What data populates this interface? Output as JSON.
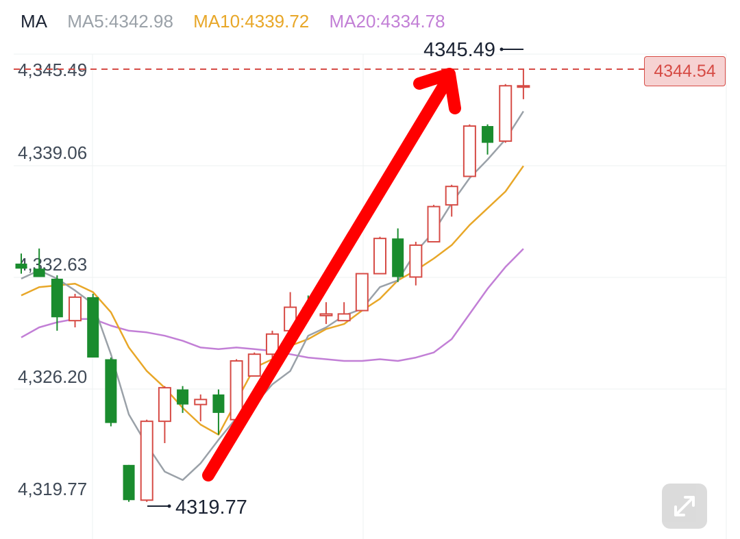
{
  "legend": {
    "title": "MA",
    "ma5": "MA5:4342.98",
    "ma10": "MA10:4339.72",
    "ma20": "MA20:4334.78"
  },
  "colors": {
    "up": "#d64b45",
    "down": "#1a8c2e",
    "ma5": "#9aa1a8",
    "ma10": "#e8a728",
    "ma20": "#c27fd6",
    "arrow": "#ff0000",
    "last_price": "#d64b45"
  },
  "last_price_label": "4344.54",
  "expand_icon": "expand-arrows-icon",
  "chart_data": {
    "type": "candlestick",
    "y_ticks": [
      "4,345.49",
      "4,339.06",
      "4,332.63",
      "4,326.20",
      "4,319.77"
    ],
    "y_tick_values": [
      4345.49,
      4339.06,
      4332.63,
      4326.2,
      4319.77
    ],
    "ylim": [
      4319.5,
      4346.4
    ],
    "high_annotation": "4345.49",
    "low_annotation": "4319.77",
    "last_price": 4344.54,
    "candles": [
      {
        "o": 4333.9,
        "h": 4334.5,
        "l": 4333.3,
        "c": 4333.6
      },
      {
        "o": 4333.6,
        "h": 4334.8,
        "l": 4333.1,
        "c": 4333.1
      },
      {
        "o": 4333.0,
        "h": 4333.2,
        "l": 4329.9,
        "c": 4330.7
      },
      {
        "o": 4330.5,
        "h": 4332.1,
        "l": 4330.1,
        "c": 4331.9
      },
      {
        "o": 4331.9,
        "h": 4332.1,
        "l": 4328.3,
        "c": 4328.3
      },
      {
        "o": 4328.2,
        "h": 4328.3,
        "l": 4324.2,
        "c": 4324.4
      },
      {
        "o": 4321.9,
        "h": 4321.9,
        "l": 4319.7,
        "c": 4319.8
      },
      {
        "o": 4319.8,
        "h": 4324.6,
        "l": 4319.7,
        "c": 4324.5
      },
      {
        "o": 4324.5,
        "h": 4326.6,
        "l": 4323.2,
        "c": 4326.5
      },
      {
        "o": 4326.4,
        "h": 4326.6,
        "l": 4325.0,
        "c": 4325.5
      },
      {
        "o": 4325.5,
        "h": 4326.1,
        "l": 4324.5,
        "c": 4325.8
      },
      {
        "o": 4326.1,
        "h": 4326.4,
        "l": 4323.7,
        "c": 4325.0
      },
      {
        "o": 4324.6,
        "h": 4328.2,
        "l": 4324.5,
        "c": 4328.1
      },
      {
        "o": 4327.2,
        "h": 4328.6,
        "l": 4327.2,
        "c": 4328.5
      },
      {
        "o": 4328.5,
        "h": 4329.9,
        "l": 4327.9,
        "c": 4329.7
      },
      {
        "o": 4329.9,
        "h": 4332.2,
        "l": 4329.9,
        "c": 4331.3
      },
      {
        "o": 4331.3,
        "h": 4332.0,
        "l": 4330.6,
        "c": 4331.0
      },
      {
        "o": 4330.8,
        "h": 4331.6,
        "l": 4330.3,
        "c": 4330.9
      },
      {
        "o": 4330.5,
        "h": 4331.6,
        "l": 4330.5,
        "c": 4330.9
      },
      {
        "o": 4331.1,
        "h": 4333.3,
        "l": 4331.1,
        "c": 4333.3
      },
      {
        "o": 4333.3,
        "h": 4335.5,
        "l": 4333.3,
        "c": 4335.4
      },
      {
        "o": 4335.4,
        "h": 4336.0,
        "l": 4332.8,
        "c": 4333.1
      },
      {
        "o": 4333.1,
        "h": 4335.2,
        "l": 4332.6,
        "c": 4335.0
      },
      {
        "o": 4335.2,
        "h": 4337.4,
        "l": 4335.2,
        "c": 4337.3
      },
      {
        "o": 4337.4,
        "h": 4338.6,
        "l": 4336.7,
        "c": 4338.5
      },
      {
        "o": 4339.1,
        "h": 4342.2,
        "l": 4339.1,
        "c": 4342.1
      },
      {
        "o": 4342.1,
        "h": 4342.2,
        "l": 4340.4,
        "c": 4341.1
      },
      {
        "o": 4341.2,
        "h": 4344.6,
        "l": 4341.1,
        "c": 4344.5
      },
      {
        "o": 4344.5,
        "h": 4345.5,
        "l": 4343.7,
        "c": 4344.5
      }
    ],
    "series": [
      {
        "name": "MA5",
        "values": [
          4333.0,
          4333.5,
          4333.0,
          4332.3,
          4331.5,
          4328.5,
          4324.9,
          4323.1,
          4321.5,
          4321.0,
          4322.0,
          4323.4,
          4324.7,
          4325.5,
          4326.7,
          4327.5,
          4329.6,
          4330.1,
          4330.8,
          4331.2,
          4332.5,
          4332.9,
          4334.6,
          4335.8,
          4337.5,
          4339.0,
          4340.1,
          4341.3,
          4342.98
        ]
      },
      {
        "name": "MA10",
        "values": [
          4332.0,
          4332.5,
          4332.6,
          4332.7,
          4332.2,
          4331.0,
          4328.9,
          4327.5,
          4326.5,
          4325.3,
          4324.3,
          4323.7,
          4325.7,
          4327.7,
          4328.2,
          4329.0,
          4329.4,
          4330.0,
          4330.3,
          4331.1,
          4331.8,
          4332.9,
          4333.5,
          4334.2,
          4335.0,
          4336.2,
          4337.2,
          4338.2,
          4339.72
        ]
      },
      {
        "name": "MA20",
        "values": [
          4329.5,
          4330.1,
          4330.4,
          4330.6,
          4330.6,
          4330.2,
          4329.9,
          4329.8,
          4329.6,
          4329.3,
          4328.9,
          4328.8,
          4328.9,
          4328.8,
          4328.7,
          4328.5,
          4328.3,
          4328.2,
          4328.1,
          4328.1,
          4328.2,
          4328.1,
          4328.3,
          4328.6,
          4329.4,
          4330.9,
          4332.4,
          4333.7,
          4334.78
        ]
      }
    ]
  }
}
